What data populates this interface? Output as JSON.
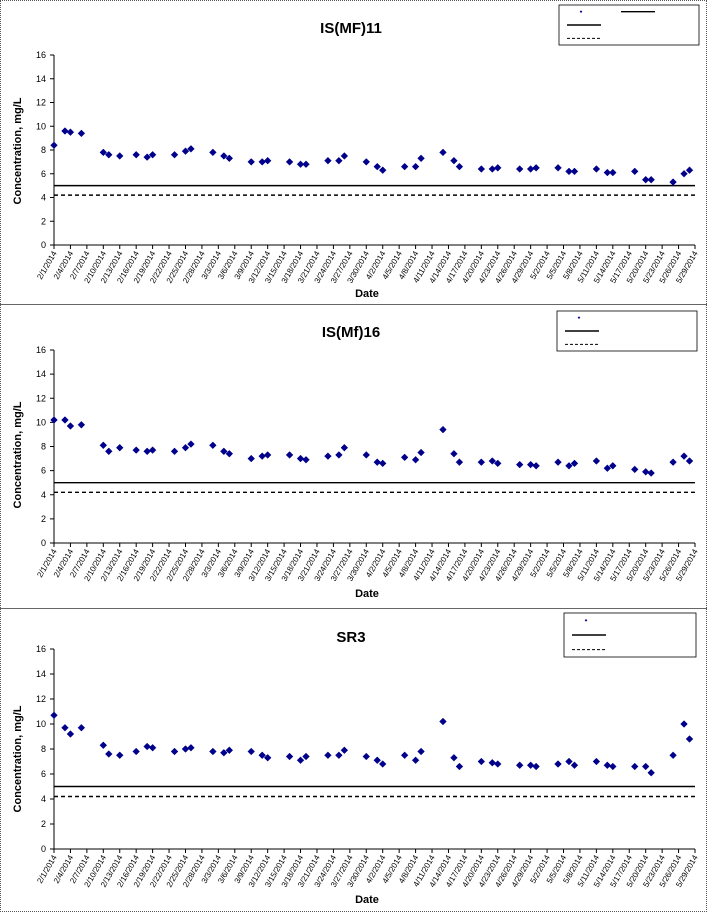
{
  "chart_data": [
    {
      "type": "scatter",
      "title": "IS(MF)11",
      "xlabel": "Date",
      "ylabel": "Concentration, mg/L",
      "ylim": [
        0,
        16
      ],
      "yticks": [
        0,
        2,
        4,
        6,
        8,
        10,
        12,
        14,
        16
      ],
      "xticks": [
        "2/1/2014",
        "2/4/2014",
        "2/7/2014",
        "2/10/2014",
        "2/13/2014",
        "2/16/2014",
        "2/19/2014",
        "2/22/2014",
        "2/25/2014",
        "2/28/2014",
        "3/3/2014",
        "3/6/2014",
        "3/9/2014",
        "3/12/2014",
        "3/15/2014",
        "3/18/2014",
        "3/21/2014",
        "3/24/2014",
        "3/27/2014",
        "3/30/2014",
        "4/2/2014",
        "4/5/2014",
        "4/8/2014",
        "4/11/2014",
        "4/14/2014",
        "4/17/2014",
        "4/20/2014",
        "4/23/2014",
        "4/26/2014",
        "4/29/2014",
        "5/2/2014",
        "5/5/2014",
        "5/8/2014",
        "5/11/2014",
        "5/14/2014",
        "5/17/2014",
        "5/20/2014",
        "5/23/2014",
        "5/26/2014",
        "5/29/2014"
      ],
      "legend": "top-right",
      "grid": false,
      "series": [
        {
          "marker": "diamond",
          "color": "#00008b",
          "points": [
            [
              "2/1/2014",
              8.4
            ],
            [
              "2/3/2014",
              9.6
            ],
            [
              "2/4/2014",
              9.5
            ],
            [
              "2/6/2014",
              9.4
            ],
            [
              "2/10/2014",
              7.8
            ],
            [
              "2/11/2014",
              7.6
            ],
            [
              "2/13/2014",
              7.5
            ],
            [
              "2/16/2014",
              7.6
            ],
            [
              "2/18/2014",
              7.4
            ],
            [
              "2/19/2014",
              7.6
            ],
            [
              "2/23/2014",
              7.6
            ],
            [
              "2/25/2014",
              7.9
            ],
            [
              "2/26/2014",
              8.1
            ],
            [
              "3/2/2014",
              7.8
            ],
            [
              "3/4/2014",
              7.5
            ],
            [
              "3/5/2014",
              7.3
            ],
            [
              "3/9/2014",
              7.0
            ],
            [
              "3/11/2014",
              7.0
            ],
            [
              "3/12/2014",
              7.1
            ],
            [
              "3/16/2014",
              7.0
            ],
            [
              "3/18/2014",
              6.8
            ],
            [
              "3/19/2014",
              6.8
            ],
            [
              "3/23/2014",
              7.1
            ],
            [
              "3/25/2014",
              7.1
            ],
            [
              "3/26/2014",
              7.5
            ],
            [
              "3/30/2014",
              7.0
            ],
            [
              "4/1/2014",
              6.6
            ],
            [
              "4/2/2014",
              6.3
            ],
            [
              "4/6/2014",
              6.6
            ],
            [
              "4/8/2014",
              6.6
            ],
            [
              "4/9/2014",
              7.3
            ],
            [
              "4/13/2014",
              7.8
            ],
            [
              "4/15/2014",
              7.1
            ],
            [
              "4/16/2014",
              6.6
            ],
            [
              "4/20/2014",
              6.4
            ],
            [
              "4/22/2014",
              6.4
            ],
            [
              "4/23/2014",
              6.5
            ],
            [
              "4/27/2014",
              6.4
            ],
            [
              "4/29/2014",
              6.4
            ],
            [
              "4/30/2014",
              6.5
            ],
            [
              "5/4/2014",
              6.5
            ],
            [
              "5/6/2014",
              6.2
            ],
            [
              "5/7/2014",
              6.2
            ],
            [
              "5/11/2014",
              6.4
            ],
            [
              "5/13/2014",
              6.1
            ],
            [
              "5/14/2014",
              6.1
            ],
            [
              "5/18/2014",
              6.2
            ],
            [
              "5/20/2014",
              5.5
            ],
            [
              "5/21/2014",
              5.5
            ],
            [
              "5/25/2014",
              5.3
            ],
            [
              "5/27/2014",
              6.0
            ],
            [
              "5/28/2014",
              6.3
            ]
          ]
        }
      ],
      "reference_lines": [
        {
          "y": 5.0,
          "style": "solid"
        },
        {
          "y": 4.2,
          "style": "dashed"
        }
      ]
    },
    {
      "type": "scatter",
      "title": "IS(Mf)16",
      "xlabel": "Date",
      "ylabel": "Concentration, mg/L",
      "ylim": [
        0,
        16
      ],
      "yticks": [
        0,
        2,
        4,
        6,
        8,
        10,
        12,
        14,
        16
      ],
      "xticks": [
        "2/1/2014",
        "2/4/2014",
        "2/7/2014",
        "2/10/2014",
        "2/13/2014",
        "2/16/2014",
        "2/19/2014",
        "2/22/2014",
        "2/25/2014",
        "2/28/2014",
        "3/3/2014",
        "3/6/2014",
        "3/9/2014",
        "3/12/2014",
        "3/15/2014",
        "3/18/2014",
        "3/21/2014",
        "3/24/2014",
        "3/27/2014",
        "3/30/2014",
        "4/2/2014",
        "4/5/2014",
        "4/8/2014",
        "4/11/2014",
        "4/14/2014",
        "4/17/2014",
        "4/20/2014",
        "4/23/2014",
        "4/26/2014",
        "4/29/2014",
        "5/2/2014",
        "5/5/2014",
        "5/8/2014",
        "5/11/2014",
        "5/14/2014",
        "5/17/2014",
        "5/20/2014",
        "5/23/2014",
        "5/26/2014",
        "5/29/2014"
      ],
      "legend": "top-right",
      "grid": false,
      "series": [
        {
          "marker": "diamond",
          "color": "#00008b",
          "points": [
            [
              "2/1/2014",
              10.2
            ],
            [
              "2/3/2014",
              10.2
            ],
            [
              "2/4/2014",
              9.7
            ],
            [
              "2/6/2014",
              9.8
            ],
            [
              "2/10/2014",
              8.1
            ],
            [
              "2/11/2014",
              7.6
            ],
            [
              "2/13/2014",
              7.9
            ],
            [
              "2/16/2014",
              7.7
            ],
            [
              "2/18/2014",
              7.6
            ],
            [
              "2/19/2014",
              7.7
            ],
            [
              "2/23/2014",
              7.6
            ],
            [
              "2/25/2014",
              7.9
            ],
            [
              "2/26/2014",
              8.2
            ],
            [
              "3/2/2014",
              8.1
            ],
            [
              "3/4/2014",
              7.6
            ],
            [
              "3/5/2014",
              7.4
            ],
            [
              "3/9/2014",
              7.0
            ],
            [
              "3/11/2014",
              7.2
            ],
            [
              "3/12/2014",
              7.3
            ],
            [
              "3/16/2014",
              7.3
            ],
            [
              "3/18/2014",
              7.0
            ],
            [
              "3/19/2014",
              6.9
            ],
            [
              "3/23/2014",
              7.2
            ],
            [
              "3/25/2014",
              7.3
            ],
            [
              "3/26/2014",
              7.9
            ],
            [
              "3/30/2014",
              7.3
            ],
            [
              "4/1/2014",
              6.7
            ],
            [
              "4/2/2014",
              6.6
            ],
            [
              "4/6/2014",
              7.1
            ],
            [
              "4/8/2014",
              6.9
            ],
            [
              "4/9/2014",
              7.5
            ],
            [
              "4/13/2014",
              9.4
            ],
            [
              "4/15/2014",
              7.4
            ],
            [
              "4/16/2014",
              6.7
            ],
            [
              "4/20/2014",
              6.7
            ],
            [
              "4/22/2014",
              6.8
            ],
            [
              "4/23/2014",
              6.6
            ],
            [
              "4/27/2014",
              6.5
            ],
            [
              "4/29/2014",
              6.5
            ],
            [
              "4/30/2014",
              6.4
            ],
            [
              "5/4/2014",
              6.7
            ],
            [
              "5/6/2014",
              6.4
            ],
            [
              "5/7/2014",
              6.6
            ],
            [
              "5/11/2014",
              6.8
            ],
            [
              "5/13/2014",
              6.2
            ],
            [
              "5/14/2014",
              6.4
            ],
            [
              "5/18/2014",
              6.1
            ],
            [
              "5/20/2014",
              5.9
            ],
            [
              "5/21/2014",
              5.8
            ],
            [
              "5/25/2014",
              6.7
            ],
            [
              "5/27/2014",
              7.2
            ],
            [
              "5/28/2014",
              6.8
            ]
          ]
        }
      ],
      "reference_lines": [
        {
          "y": 5.0,
          "style": "solid"
        },
        {
          "y": 4.2,
          "style": "dashed"
        }
      ]
    },
    {
      "type": "scatter",
      "title": "SR3",
      "xlabel": "Date",
      "ylabel": "Concentration, mg/L",
      "ylim": [
        0,
        16
      ],
      "yticks": [
        0,
        2,
        4,
        6,
        8,
        10,
        12,
        14,
        16
      ],
      "xticks": [
        "2/1/2014",
        "2/4/2014",
        "2/7/2014",
        "2/10/2014",
        "2/13/2014",
        "2/16/2014",
        "2/19/2014",
        "2/22/2014",
        "2/25/2014",
        "2/28/2014",
        "3/3/2014",
        "3/6/2014",
        "3/9/2014",
        "3/12/2014",
        "3/15/2014",
        "3/18/2014",
        "3/21/2014",
        "3/24/2014",
        "3/27/2014",
        "3/30/2014",
        "4/2/2014",
        "4/5/2014",
        "4/8/2014",
        "4/11/2014",
        "4/14/2014",
        "4/17/2014",
        "4/20/2014",
        "4/23/2014",
        "4/26/2014",
        "4/29/2014",
        "5/2/2014",
        "5/5/2014",
        "5/8/2014",
        "5/11/2014",
        "5/14/2014",
        "5/17/2014",
        "5/20/2014",
        "5/23/2014",
        "5/26/2014",
        "5/29/2014"
      ],
      "legend": "top-right",
      "grid": false,
      "series": [
        {
          "marker": "diamond",
          "color": "#00008b",
          "points": [
            [
              "2/1/2014",
              10.7
            ],
            [
              "2/3/2014",
              9.7
            ],
            [
              "2/4/2014",
              9.2
            ],
            [
              "2/6/2014",
              9.7
            ],
            [
              "2/10/2014",
              8.3
            ],
            [
              "2/11/2014",
              7.6
            ],
            [
              "2/13/2014",
              7.5
            ],
            [
              "2/16/2014",
              7.8
            ],
            [
              "2/18/2014",
              8.2
            ],
            [
              "2/19/2014",
              8.1
            ],
            [
              "2/23/2014",
              7.8
            ],
            [
              "2/25/2014",
              8.0
            ],
            [
              "2/26/2014",
              8.1
            ],
            [
              "3/2/2014",
              7.8
            ],
            [
              "3/4/2014",
              7.7
            ],
            [
              "3/5/2014",
              7.9
            ],
            [
              "3/9/2014",
              7.8
            ],
            [
              "3/11/2014",
              7.5
            ],
            [
              "3/12/2014",
              7.3
            ],
            [
              "3/16/2014",
              7.4
            ],
            [
              "3/18/2014",
              7.1
            ],
            [
              "3/19/2014",
              7.4
            ],
            [
              "3/23/2014",
              7.5
            ],
            [
              "3/25/2014",
              7.5
            ],
            [
              "3/26/2014",
              7.9
            ],
            [
              "3/30/2014",
              7.4
            ],
            [
              "4/1/2014",
              7.1
            ],
            [
              "4/2/2014",
              6.8
            ],
            [
              "4/6/2014",
              7.5
            ],
            [
              "4/8/2014",
              7.1
            ],
            [
              "4/9/2014",
              7.8
            ],
            [
              "4/13/2014",
              10.2
            ],
            [
              "4/15/2014",
              7.3
            ],
            [
              "4/16/2014",
              6.6
            ],
            [
              "4/20/2014",
              7.0
            ],
            [
              "4/22/2014",
              6.9
            ],
            [
              "4/23/2014",
              6.8
            ],
            [
              "4/27/2014",
              6.7
            ],
            [
              "4/29/2014",
              6.7
            ],
            [
              "4/30/2014",
              6.6
            ],
            [
              "5/4/2014",
              6.8
            ],
            [
              "5/6/2014",
              7.0
            ],
            [
              "5/7/2014",
              6.7
            ],
            [
              "5/11/2014",
              7.0
            ],
            [
              "5/13/2014",
              6.7
            ],
            [
              "5/14/2014",
              6.6
            ],
            [
              "5/18/2014",
              6.6
            ],
            [
              "5/20/2014",
              6.6
            ],
            [
              "5/21/2014",
              6.1
            ],
            [
              "5/25/2014",
              7.5
            ],
            [
              "5/27/2014",
              10.0
            ],
            [
              "5/28/2014",
              8.8
            ]
          ]
        }
      ],
      "reference_lines": [
        {
          "y": 5.0,
          "style": "solid"
        },
        {
          "y": 4.2,
          "style": "dashed"
        }
      ]
    }
  ]
}
